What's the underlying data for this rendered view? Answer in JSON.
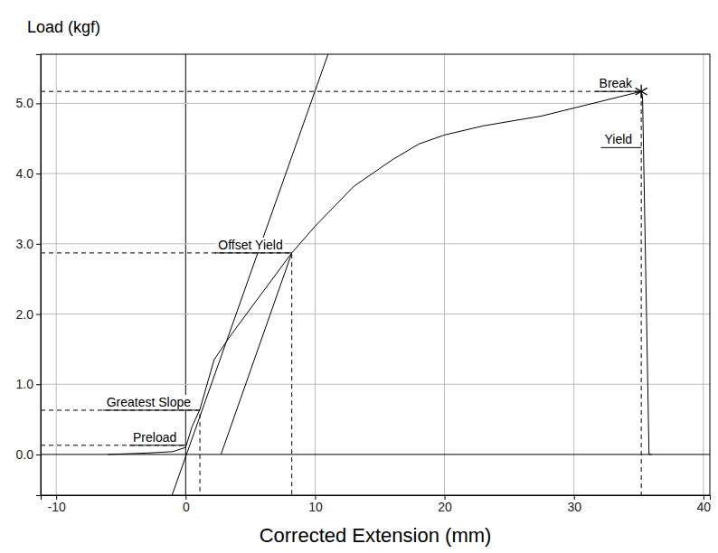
{
  "chart_data": {
    "type": "line",
    "title": "Load (kgf)",
    "x_label": "Corrected Extension (mm)",
    "xlim": [
      -11.2,
      40.5
    ],
    "ylim": [
      -0.58,
      5.7
    ],
    "xticks": [
      -10,
      0,
      10,
      20,
      30,
      40
    ],
    "yticks": [
      {
        "value": 0,
        "label": "0.0"
      },
      {
        "value": 1,
        "label": "1.0"
      },
      {
        "value": 2,
        "label": "2.0"
      },
      {
        "value": 3,
        "label": "3.0"
      },
      {
        "value": 4,
        "label": "4.0"
      },
      {
        "value": 5,
        "label": "5.0"
      }
    ],
    "grid": true,
    "series": [
      {
        "type": "line",
        "line_style": "solid",
        "color": "#000000",
        "x": [
          -6,
          -3,
          -1,
          0,
          0.5,
          1.1,
          1.5,
          2.2,
          3.5,
          5.5,
          8.2,
          10,
          13,
          16,
          18,
          20,
          23,
          27.5,
          35.2,
          35.3,
          35.8,
          36
        ],
        "values": [
          0.0,
          0.02,
          0.04,
          0.1,
          0.4,
          0.64,
          0.9,
          1.35,
          1.7,
          2.2,
          2.87,
          3.25,
          3.82,
          4.2,
          4.42,
          4.55,
          4.68,
          4.82,
          5.17,
          5.1,
          0.0,
          0.0
        ]
      },
      {
        "type": "line",
        "line_style": "solid",
        "color": "#000000",
        "x": [
          -1.05,
          11.0
        ],
        "values": [
          -0.58,
          5.7
        ]
      },
      {
        "type": "line",
        "line_style": "solid",
        "color": "#000000",
        "x": [
          2.73,
          8.2
        ],
        "values": [
          0.0,
          2.87
        ]
      },
      {
        "type": "line",
        "line_style": "dashed",
        "color": "#000000",
        "x": [
          -11.2,
          35.2,
          35.2
        ],
        "values": [
          5.17,
          5.17,
          -0.58
        ]
      },
      {
        "type": "line",
        "line_style": "dashed",
        "color": "#000000",
        "x": [
          -11.2,
          8.2,
          8.2
        ],
        "values": [
          2.87,
          2.87,
          -0.58
        ]
      },
      {
        "type": "line",
        "line_style": "dashed",
        "color": "#000000",
        "x": [
          -11.2,
          1.1,
          1.1
        ],
        "values": [
          0.63,
          0.63,
          -0.58
        ]
      },
      {
        "type": "line",
        "line_style": "dashed",
        "color": "#000000",
        "x": [
          -11.2,
          0.0
        ],
        "values": [
          0.13,
          0.13
        ]
      },
      {
        "type": "scatter",
        "marker": "asterisk",
        "color": "#000000",
        "x": [
          35.2
        ],
        "values": [
          5.17
        ]
      }
    ],
    "annotations": [
      {
        "text": "Break",
        "x": 35.2,
        "y": 5.17
      },
      {
        "text": "Yield",
        "x": 35.2,
        "y": 4.37
      },
      {
        "text": "Offset Yield",
        "x": 8.2,
        "y": 2.87
      },
      {
        "text": "Greatest Slope",
        "x": 1.1,
        "y": 0.63
      },
      {
        "text": "Preload",
        "x": 0.0,
        "y": 0.13
      }
    ]
  }
}
